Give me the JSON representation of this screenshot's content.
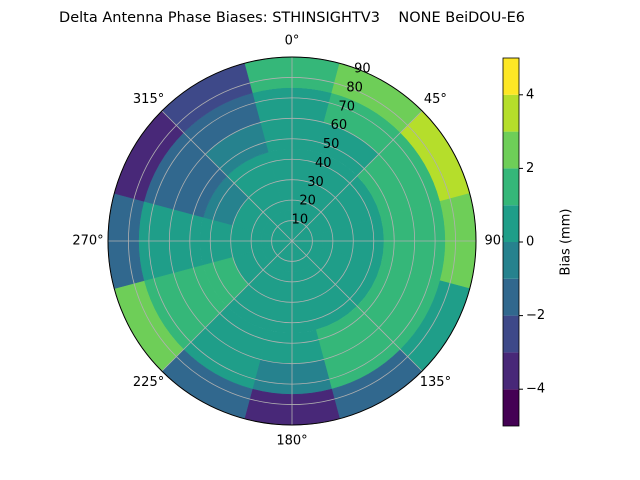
{
  "chart_data": {
    "type": "polar-contour",
    "title": "Delta Antenna Phase Biases: STHINSIGHTV3    NONE BeiDOU-E6",
    "azimuth_edges": [
      -15,
      15,
      45,
      75,
      105,
      135,
      165,
      195,
      225,
      255,
      285,
      315,
      345
    ],
    "zenith_edges": [
      0,
      15,
      30,
      45,
      60,
      75,
      90
    ],
    "z": [
      [
        0.5,
        0.5,
        0.5,
        0.5,
        0.7,
        1.5
      ],
      [
        0.5,
        0.5,
        0.5,
        0.7,
        1.2,
        2.5
      ],
      [
        0.5,
        0.5,
        0.7,
        1.2,
        1.8,
        3.5
      ],
      [
        0.5,
        0.5,
        0.7,
        1.2,
        1.5,
        2.5
      ],
      [
        0.5,
        0.5,
        0.7,
        1.2,
        1.5,
        0.5
      ],
      [
        0.5,
        0.5,
        0.7,
        1.2,
        1.2,
        -1.5
      ],
      [
        0.5,
        0.5,
        0.5,
        0.3,
        -0.5,
        -3.5
      ],
      [
        0.5,
        0.5,
        0.7,
        0.7,
        0.5,
        -1.5
      ],
      [
        0.5,
        0.7,
        1.2,
        1.5,
        1.5,
        2.5
      ],
      [
        0.5,
        0.5,
        0.7,
        0.7,
        0.3,
        -1.5
      ],
      [
        0.5,
        0.5,
        -0.5,
        -1.5,
        -1.5,
        -3.5
      ],
      [
        0.5,
        0.5,
        0.3,
        -0.5,
        -1.5,
        -2.5
      ]
    ],
    "rlim": [
      0,
      90
    ],
    "rticks": [
      10,
      20,
      30,
      40,
      50,
      60,
      70,
      80,
      90
    ],
    "thetaticks": [
      {
        "value": 0,
        "label": "0°"
      },
      {
        "value": 45,
        "label": "45°"
      },
      {
        "value": 90,
        "label": "90°"
      },
      {
        "value": 135,
        "label": "135°"
      },
      {
        "value": 180,
        "label": "180°"
      },
      {
        "value": 225,
        "label": "225°"
      },
      {
        "value": 270,
        "label": "270°"
      },
      {
        "value": 315,
        "label": "315°"
      }
    ],
    "grid": true,
    "colorbar": {
      "label": "Bias (mm)",
      "levels": [
        -5,
        -4,
        -3,
        -2,
        -1,
        0,
        1,
        2,
        3,
        4,
        5
      ],
      "colors": [
        "#440154",
        "#482878",
        "#3e4989",
        "#31688e",
        "#26828e",
        "#1f9e89",
        "#35b779",
        "#6ece58",
        "#b5de2b",
        "#fde725"
      ],
      "ticks": [
        {
          "value": -4,
          "label": "−4"
        },
        {
          "value": -2,
          "label": "−2"
        },
        0,
        2,
        4
      ]
    }
  }
}
